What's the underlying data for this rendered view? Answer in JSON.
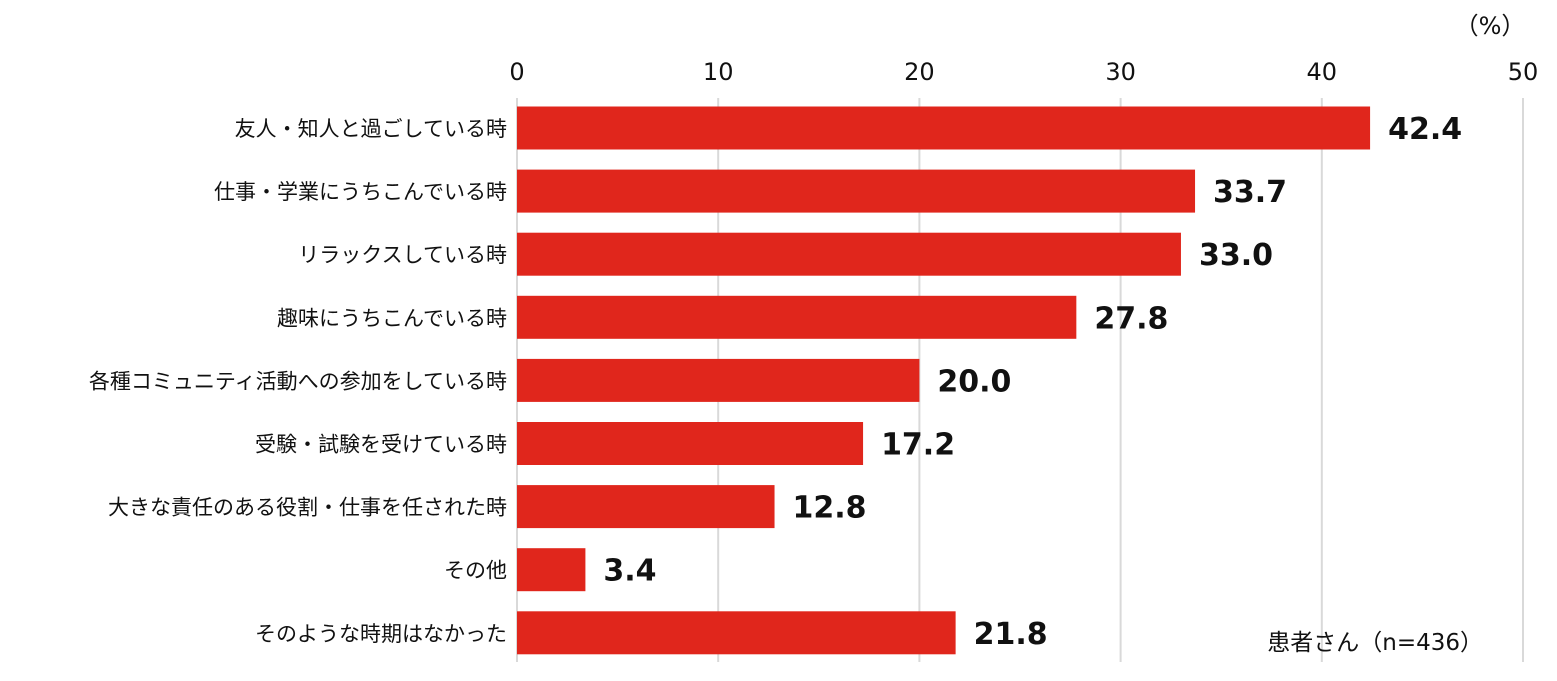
{
  "chart_data": {
    "type": "bar",
    "orientation": "horizontal",
    "unit": "（%）",
    "note": "患者さん（n=436）",
    "xlim": [
      0,
      50
    ],
    "xticks": [
      0,
      10,
      20,
      30,
      40,
      50
    ],
    "grid": true,
    "bar_color": "#e0261c",
    "grid_color": "#d9d9d9",
    "categories": [
      "友人・知人と過ごしている時",
      "仕事・学業にうちこんでいる時",
      "リラックスしている時",
      "趣味にうちこんでいる時",
      "各種コミュニティ活動への参加をしている時",
      "受験・試験を受けている時",
      "大きな責任のある役割・仕事を任された時",
      "その他",
      "そのような時期はなかった"
    ],
    "values": [
      42.4,
      33.7,
      33.0,
      27.8,
      20.0,
      17.2,
      12.8,
      3.4,
      21.8
    ],
    "value_labels": [
      "42.4",
      "33.7",
      "33.0",
      "27.8",
      "20.0",
      "17.2",
      "12.8",
      "3.4",
      "21.8"
    ]
  }
}
